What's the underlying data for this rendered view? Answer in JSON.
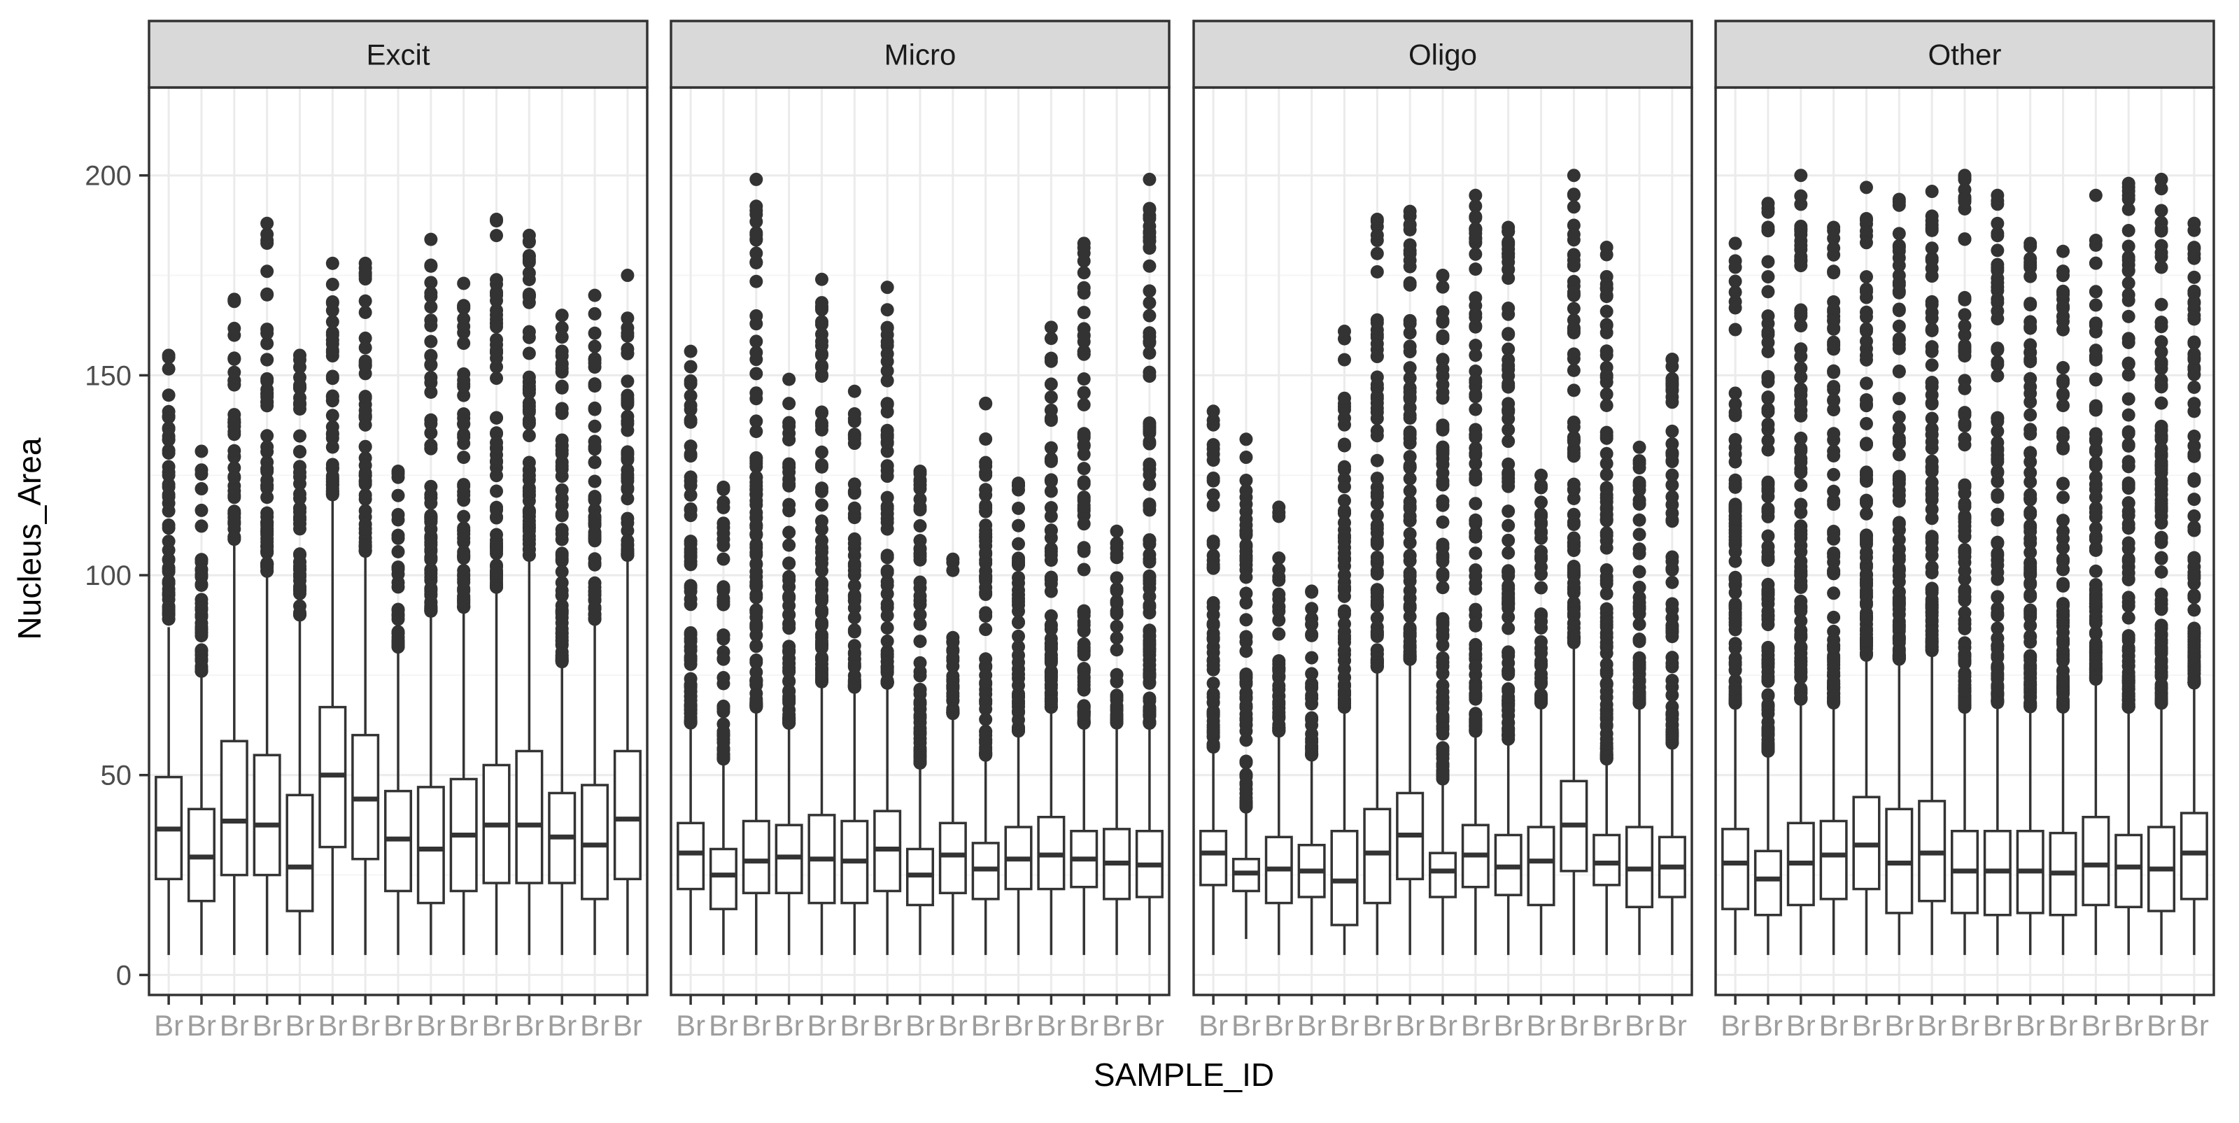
{
  "chart_data": {
    "type": "boxplot",
    "xlabel": "SAMPLE_ID",
    "ylabel": "Nucleus_Area",
    "ylim": [
      -5,
      222
    ],
    "yticks": [
      0,
      50,
      100,
      150,
      200
    ],
    "grid": true,
    "legend": "none",
    "colors": {
      "panel_border": "#333333",
      "strip_fill": "#d9d9d9",
      "grid_major": "#ebebeb",
      "grid_minor": "#f5f5f5",
      "box_line": "#333333",
      "outlier": "#333333",
      "axis_text": "#4d4d4d",
      "title_text": "#000000"
    },
    "x_tick_labels_note": "overlapping, illegible sample IDs",
    "x_tick_label_prefix": "Br",
    "facets": [
      {
        "name": "Excit",
        "boxes": [
          {
            "min": 5,
            "q1": 24,
            "median": 36.5,
            "q3": 49.5,
            "whisker_hi": 87,
            "outlier_max": 155
          },
          {
            "min": 5,
            "q1": 18.5,
            "median": 29.5,
            "q3": 41.5,
            "whisker_hi": 75,
            "outlier_max": 131
          },
          {
            "min": 5,
            "q1": 25,
            "median": 38.5,
            "q3": 58.5,
            "whisker_hi": 108,
            "outlier_max": 169
          },
          {
            "min": 5,
            "q1": 25,
            "median": 37.5,
            "q3": 55,
            "whisker_hi": 100,
            "outlier_max": 188
          },
          {
            "min": 5,
            "q1": 16,
            "median": 27,
            "q3": 45,
            "whisker_hi": 89,
            "outlier_max": 155
          },
          {
            "min": 5,
            "q1": 32,
            "median": 50,
            "q3": 67,
            "whisker_hi": 119,
            "outlier_max": 178
          },
          {
            "min": 5,
            "q1": 29,
            "median": 44,
            "q3": 60,
            "whisker_hi": 105,
            "outlier_max": 178
          },
          {
            "min": 5,
            "q1": 21,
            "median": 34,
            "q3": 46,
            "whisker_hi": 81,
            "outlier_max": 126
          },
          {
            "min": 5,
            "q1": 18,
            "median": 31.5,
            "q3": 47,
            "whisker_hi": 90,
            "outlier_max": 184
          },
          {
            "min": 5,
            "q1": 21,
            "median": 35,
            "q3": 49,
            "whisker_hi": 91,
            "outlier_max": 173
          },
          {
            "min": 5,
            "q1": 23,
            "median": 37.5,
            "q3": 52.5,
            "whisker_hi": 96,
            "outlier_max": 189
          },
          {
            "min": 5,
            "q1": 23,
            "median": 37.5,
            "q3": 56,
            "whisker_hi": 104,
            "outlier_max": 185
          },
          {
            "min": 5,
            "q1": 23,
            "median": 34.5,
            "q3": 45.5,
            "whisker_hi": 77,
            "outlier_max": 165
          },
          {
            "min": 5,
            "q1": 19,
            "median": 32.5,
            "q3": 47.5,
            "whisker_hi": 88,
            "outlier_max": 170
          },
          {
            "min": 5,
            "q1": 24,
            "median": 39,
            "q3": 56,
            "whisker_hi": 104,
            "outlier_max": 175
          }
        ]
      },
      {
        "name": "Micro",
        "boxes": [
          {
            "min": 5,
            "q1": 21.5,
            "median": 30.5,
            "q3": 38,
            "whisker_hi": 62,
            "outlier_max": 156
          },
          {
            "min": 5,
            "q1": 16.5,
            "median": 25,
            "q3": 31.5,
            "whisker_hi": 53,
            "outlier_max": 122
          },
          {
            "min": 5,
            "q1": 20.5,
            "median": 28.5,
            "q3": 38.5,
            "whisker_hi": 66,
            "outlier_max": 199
          },
          {
            "min": 5,
            "q1": 20.5,
            "median": 29.5,
            "q3": 37.5,
            "whisker_hi": 62,
            "outlier_max": 149
          },
          {
            "min": 5,
            "q1": 18,
            "median": 29,
            "q3": 40,
            "whisker_hi": 72,
            "outlier_max": 174
          },
          {
            "min": 5,
            "q1": 18,
            "median": 28.5,
            "q3": 38.5,
            "whisker_hi": 71,
            "outlier_max": 146
          },
          {
            "min": 5,
            "q1": 21,
            "median": 31.5,
            "q3": 41,
            "whisker_hi": 72,
            "outlier_max": 172
          },
          {
            "min": 5,
            "q1": 17.5,
            "median": 25,
            "q3": 31.5,
            "whisker_hi": 52,
            "outlier_max": 126
          },
          {
            "min": 5,
            "q1": 20.5,
            "median": 30,
            "q3": 38,
            "whisker_hi": 64,
            "outlier_max": 104
          },
          {
            "min": 5,
            "q1": 19,
            "median": 26.5,
            "q3": 33,
            "whisker_hi": 54,
            "outlier_max": 143
          },
          {
            "min": 5,
            "q1": 21.5,
            "median": 29,
            "q3": 37,
            "whisker_hi": 60,
            "outlier_max": 123
          },
          {
            "min": 5,
            "q1": 21.5,
            "median": 30,
            "q3": 39.5,
            "whisker_hi": 66,
            "outlier_max": 162
          },
          {
            "min": 5,
            "q1": 22,
            "median": 29,
            "q3": 36,
            "whisker_hi": 62,
            "outlier_max": 183
          },
          {
            "min": 5,
            "q1": 19,
            "median": 28,
            "q3": 36.5,
            "whisker_hi": 62,
            "outlier_max": 111
          },
          {
            "min": 5,
            "q1": 19.5,
            "median": 27.5,
            "q3": 36,
            "whisker_hi": 62,
            "outlier_max": 199
          }
        ]
      },
      {
        "name": "Oligo",
        "boxes": [
          {
            "min": 5,
            "q1": 22.5,
            "median": 30.5,
            "q3": 36,
            "whisker_hi": 56,
            "outlier_max": 141
          },
          {
            "min": 9,
            "q1": 21,
            "median": 25.5,
            "q3": 29,
            "whisker_hi": 41,
            "outlier_max": 134
          },
          {
            "min": 5,
            "q1": 18,
            "median": 26.5,
            "q3": 34.5,
            "whisker_hi": 60,
            "outlier_max": 117
          },
          {
            "min": 5,
            "q1": 19.5,
            "median": 26,
            "q3": 32.5,
            "whisker_hi": 54,
            "outlier_max": 96
          },
          {
            "min": 5,
            "q1": 12.5,
            "median": 23.5,
            "q3": 36,
            "whisker_hi": 66,
            "outlier_max": 161
          },
          {
            "min": 5,
            "q1": 18,
            "median": 30.5,
            "q3": 41.5,
            "whisker_hi": 76,
            "outlier_max": 189
          },
          {
            "min": 5,
            "q1": 24,
            "median": 35,
            "q3": 45.5,
            "whisker_hi": 78,
            "outlier_max": 191
          },
          {
            "min": 5,
            "q1": 19.5,
            "median": 26,
            "q3": 30.5,
            "whisker_hi": 48,
            "outlier_max": 175
          },
          {
            "min": 5,
            "q1": 22,
            "median": 30,
            "q3": 37.5,
            "whisker_hi": 60,
            "outlier_max": 195
          },
          {
            "min": 5,
            "q1": 20,
            "median": 27,
            "q3": 35,
            "whisker_hi": 58,
            "outlier_max": 187
          },
          {
            "min": 5,
            "q1": 17.5,
            "median": 28.5,
            "q3": 37,
            "whisker_hi": 67,
            "outlier_max": 125
          },
          {
            "min": 5,
            "q1": 26,
            "median": 37.5,
            "q3": 48.5,
            "whisker_hi": 82,
            "outlier_max": 200
          },
          {
            "min": 5,
            "q1": 22.5,
            "median": 28,
            "q3": 35,
            "whisker_hi": 53,
            "outlier_max": 182
          },
          {
            "min": 5,
            "q1": 17,
            "median": 26.5,
            "q3": 37,
            "whisker_hi": 67,
            "outlier_max": 132
          },
          {
            "min": 5,
            "q1": 19.5,
            "median": 27,
            "q3": 34.5,
            "whisker_hi": 57,
            "outlier_max": 154
          }
        ]
      },
      {
        "name": "Other",
        "boxes": [
          {
            "min": 5,
            "q1": 16.5,
            "median": 28,
            "q3": 36.5,
            "whisker_hi": 67,
            "outlier_max": 183
          },
          {
            "min": 5,
            "q1": 15,
            "median": 24,
            "q3": 31,
            "whisker_hi": 55,
            "outlier_max": 193
          },
          {
            "min": 5,
            "q1": 17.5,
            "median": 28,
            "q3": 38,
            "whisker_hi": 68,
            "outlier_max": 200
          },
          {
            "min": 5,
            "q1": 19,
            "median": 30,
            "q3": 38.5,
            "whisker_hi": 67,
            "outlier_max": 187
          },
          {
            "min": 5,
            "q1": 21.5,
            "median": 32.5,
            "q3": 44.5,
            "whisker_hi": 79,
            "outlier_max": 197
          },
          {
            "min": 5,
            "q1": 15.5,
            "median": 28,
            "q3": 41.5,
            "whisker_hi": 78,
            "outlier_max": 194
          },
          {
            "min": 5,
            "q1": 18.5,
            "median": 30.5,
            "q3": 43.5,
            "whisker_hi": 80,
            "outlier_max": 196
          },
          {
            "min": 5,
            "q1": 15.5,
            "median": 26,
            "q3": 36,
            "whisker_hi": 66,
            "outlier_max": 200
          },
          {
            "min": 5,
            "q1": 15,
            "median": 26,
            "q3": 36,
            "whisker_hi": 67,
            "outlier_max": 195
          },
          {
            "min": 5,
            "q1": 15.5,
            "median": 26,
            "q3": 36,
            "whisker_hi": 66,
            "outlier_max": 183
          },
          {
            "min": 5,
            "q1": 15,
            "median": 25.5,
            "q3": 35.5,
            "whisker_hi": 66,
            "outlier_max": 181
          },
          {
            "min": 5,
            "q1": 17.5,
            "median": 27.5,
            "q3": 39.5,
            "whisker_hi": 73,
            "outlier_max": 195
          },
          {
            "min": 5,
            "q1": 17,
            "median": 27,
            "q3": 35,
            "whisker_hi": 66,
            "outlier_max": 198
          },
          {
            "min": 5,
            "q1": 16,
            "median": 26.5,
            "q3": 37,
            "whisker_hi": 67,
            "outlier_max": 199
          },
          {
            "min": 5,
            "q1": 19,
            "median": 30.5,
            "q3": 40.5,
            "whisker_hi": 72,
            "outlier_max": 188
          }
        ]
      }
    ]
  }
}
